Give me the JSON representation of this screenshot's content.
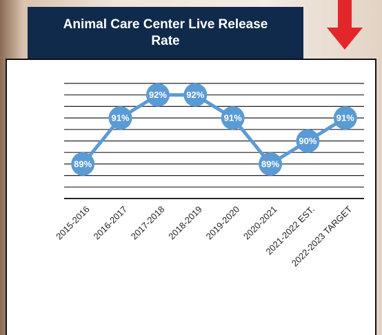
{
  "chart_data": {
    "type": "line",
    "title": "Animal Care Center Live Release Rate",
    "categories": [
      "2015-2016",
      "2016-2017",
      "2017-2018",
      "2018-2019",
      "2019-2020",
      "2020-2021",
      "2021-2022 EST.",
      "2022-2023 TARGET"
    ],
    "values": [
      89,
      91,
      92,
      92,
      91,
      89,
      90,
      91
    ],
    "value_labels": [
      "89%",
      "91%",
      "92%",
      "92%",
      "91%",
      "89%",
      "90%",
      "91%"
    ],
    "color": "#5b9bd5",
    "ylim": [
      87.5,
      92.5
    ],
    "yticks": [
      87.5,
      88,
      88.5,
      89,
      89.5,
      90,
      90.5,
      91,
      91.5,
      92,
      92.5
    ],
    "grid": true
  }
}
